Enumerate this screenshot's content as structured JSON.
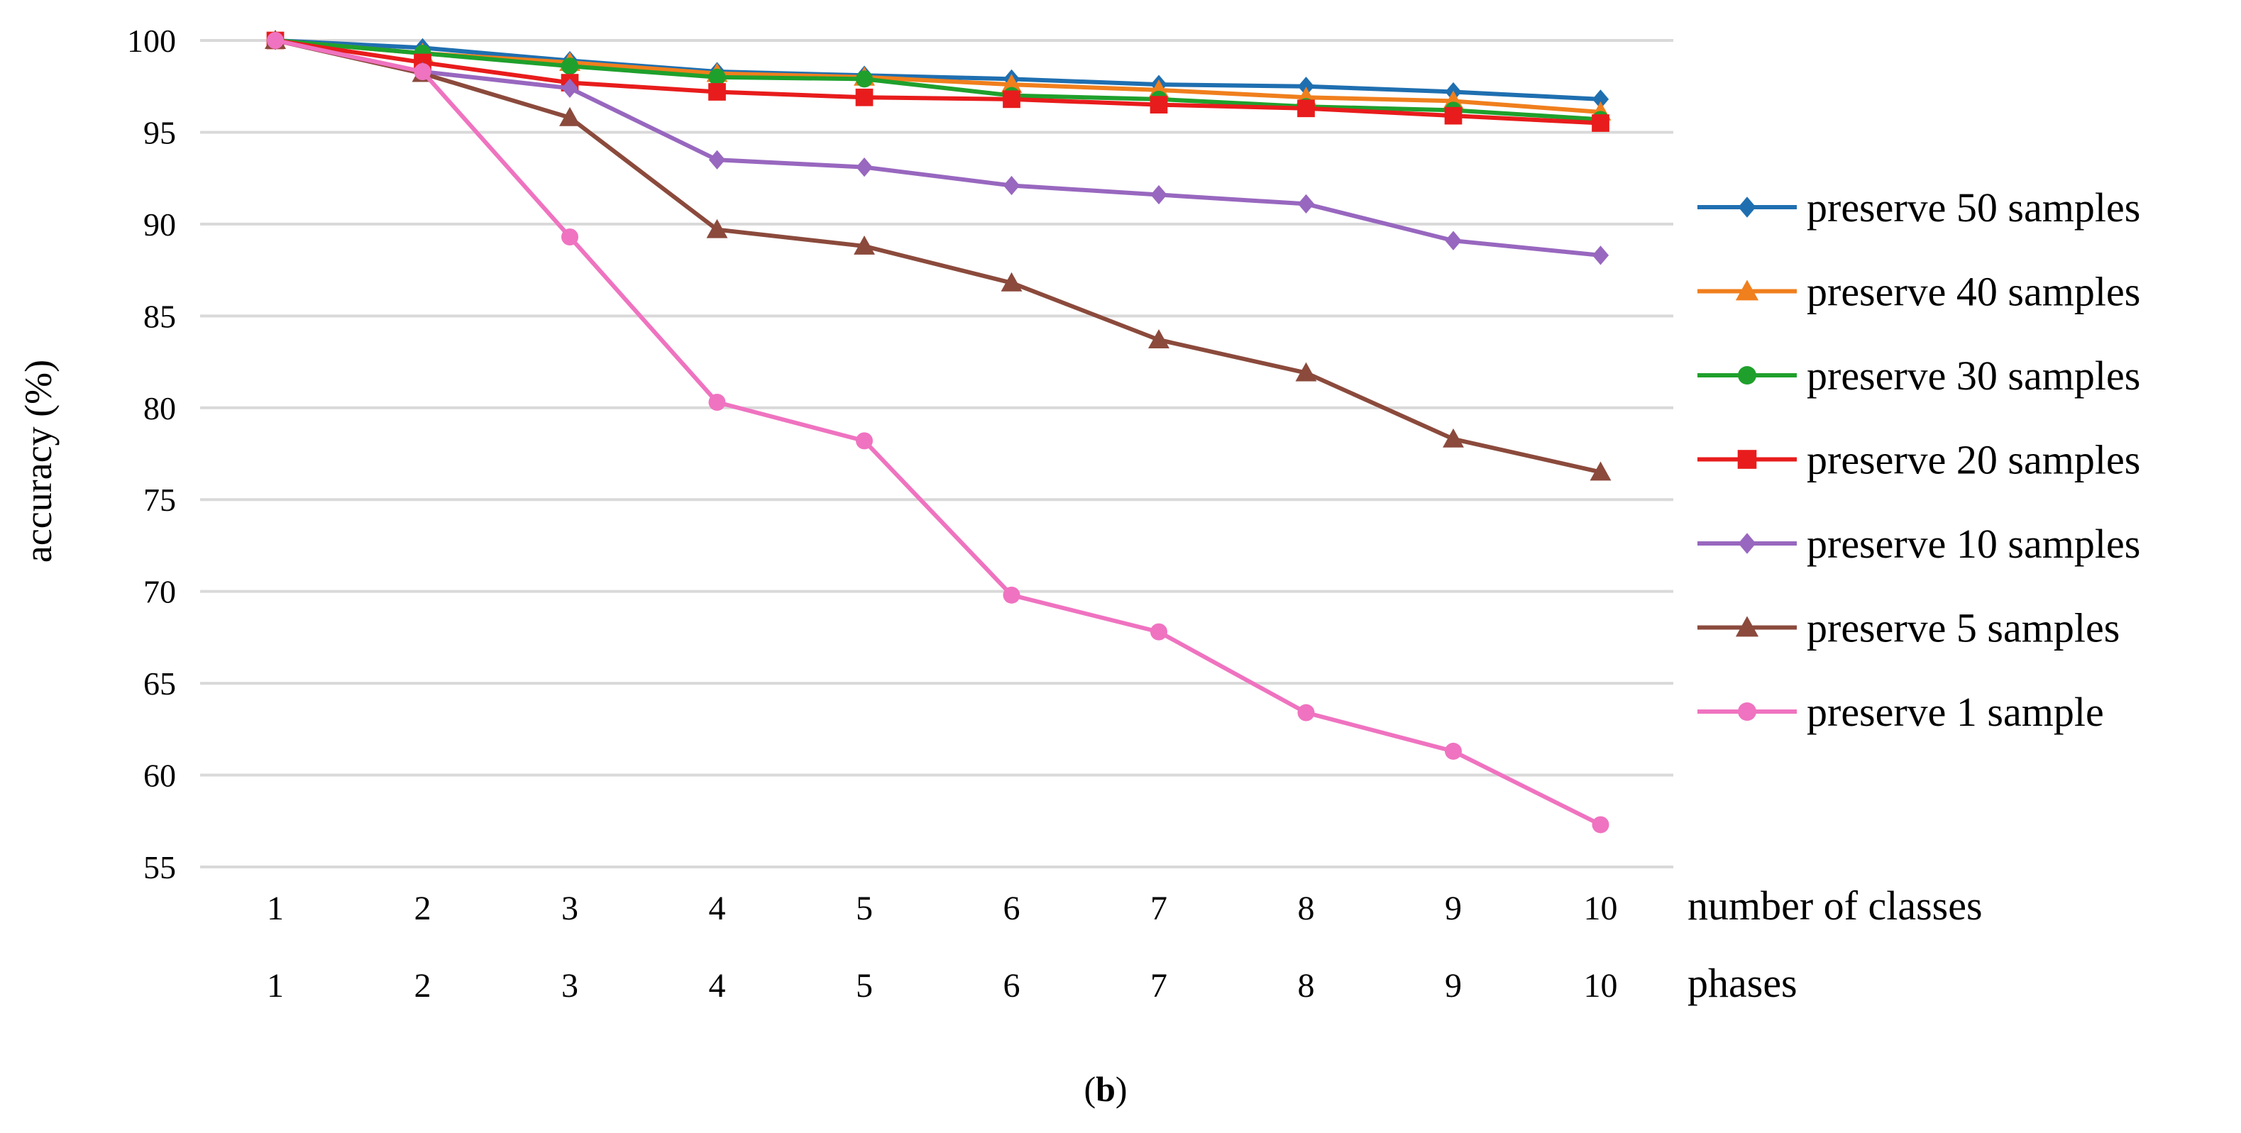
{
  "chart_data": {
    "type": "line",
    "title": "",
    "ylabel": "accuracy  (%)",
    "ylim": [
      55,
      100
    ],
    "yticks": [
      55,
      60,
      65,
      70,
      75,
      80,
      85,
      90,
      95,
      100
    ],
    "grid": true,
    "legend_position": "right",
    "x": [
      1,
      2,
      3,
      4,
      5,
      6,
      7,
      8,
      9,
      10
    ],
    "x_rows": [
      {
        "label": "number of classes",
        "ticks": [
          "1",
          "2",
          "3",
          "4",
          "5",
          "6",
          "7",
          "8",
          "9",
          "10"
        ]
      },
      {
        "label": "phases",
        "ticks": [
          "1",
          "2",
          "3",
          "4",
          "5",
          "6",
          "7",
          "8",
          "9",
          "10"
        ]
      }
    ],
    "series": [
      {
        "name": "preserve 50 samples",
        "color": "#1f6fb0",
        "marker": "diamond",
        "values": [
          100,
          99.6,
          98.9,
          98.3,
          98.1,
          97.9,
          97.6,
          97.5,
          97.2,
          96.8
        ]
      },
      {
        "name": "preserve 40 samples",
        "color": "#f07f1d",
        "marker": "triangle",
        "values": [
          100,
          99.3,
          98.8,
          98.2,
          98.0,
          97.6,
          97.3,
          96.9,
          96.7,
          96.1
        ]
      },
      {
        "name": "preserve 30 samples",
        "color": "#1fa02c",
        "marker": "circle",
        "values": [
          100,
          99.3,
          98.6,
          98.0,
          97.9,
          97.0,
          96.8,
          96.4,
          96.2,
          95.7
        ]
      },
      {
        "name": "preserve 20 samples",
        "color": "#e81c1c",
        "marker": "square",
        "values": [
          100,
          98.8,
          97.7,
          97.2,
          96.9,
          96.8,
          96.5,
          96.3,
          95.9,
          95.5
        ]
      },
      {
        "name": "preserve 10 samples",
        "color": "#9867bf",
        "marker": "diamond",
        "values": [
          100,
          98.3,
          97.4,
          93.5,
          93.1,
          92.1,
          91.6,
          91.1,
          89.1,
          88.3
        ]
      },
      {
        "name": "preserve  5 samples",
        "color": "#8b4a3c",
        "marker": "triangle",
        "values": [
          100,
          98.2,
          95.8,
          89.7,
          88.8,
          86.8,
          83.7,
          81.9,
          78.3,
          76.5
        ]
      },
      {
        "name": "preserve 1 sample",
        "color": "#ef73c0",
        "marker": "circle",
        "values": [
          100,
          98.3,
          89.3,
          80.3,
          78.2,
          69.8,
          67.8,
          63.4,
          61.3,
          57.3
        ]
      }
    ],
    "caption": "(b)"
  }
}
